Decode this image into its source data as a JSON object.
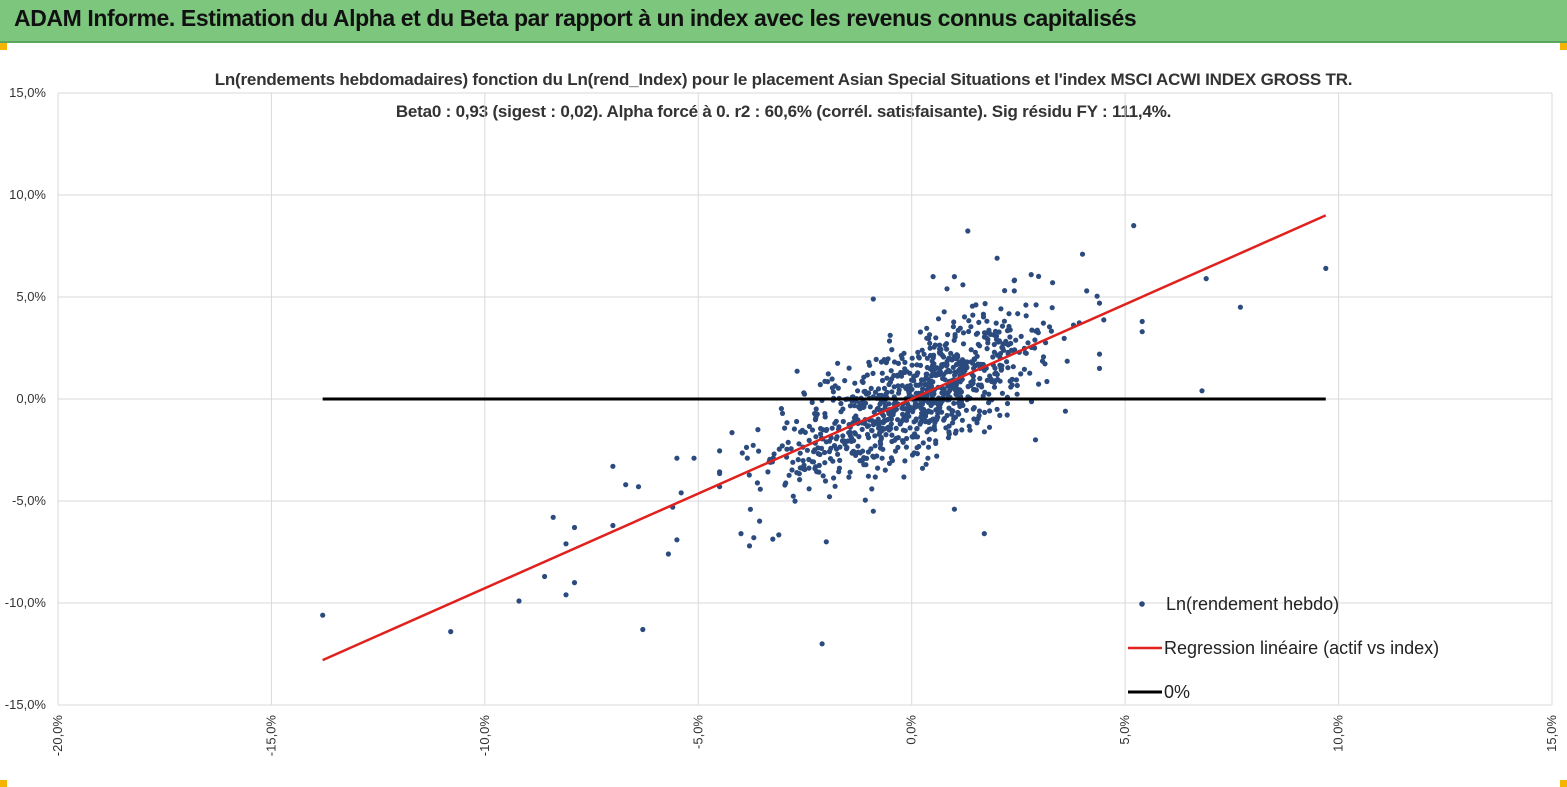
{
  "header": {
    "title": "ADAM Informe. Estimation du Alpha et du Beta par rapport à un index avec les revenus connus capitalisés"
  },
  "colors": {
    "banner": "#7dc67e",
    "points": "#2b4a7e",
    "regression": "#e0211d",
    "zero_line": "#000000",
    "grid": "#d9d9d9",
    "corner_markers": "#f5b400"
  },
  "chart_data": {
    "type": "scatter",
    "title": "Ln(rendements hebdomadaires) fonction du Ln(rend_Index) pour le placement Asian Special Situations  et l'index MSCI ACWI INDEX GROSS TR.",
    "subtitle": "Beta0 : 0,93  (sigest : 0,02).  Alpha forcé à 0. r2 : 60,6% (corrél. satisfaisante). Sig résidu FY : 111,4%.",
    "xlabel": "",
    "ylabel": "",
    "xlim": [
      -0.2,
      0.15
    ],
    "ylim": [
      -0.15,
      0.15
    ],
    "xticks": [
      "-20,0%",
      "-15,0%",
      "-10,0%",
      "-5,0%",
      "0,0%",
      "5,0%",
      "10,0%",
      "15,0%"
    ],
    "yticks": [
      "15,0%",
      "10,0%",
      "5,0%",
      "0,0%",
      "-5,0%",
      "-10,0%",
      "-15,0%"
    ],
    "grid": true,
    "legend_position": "bottom-right",
    "point_count": 1000,
    "beta": 0.93,
    "series": [
      {
        "name": "Ln(rendement hebdo)",
        "kind": "scatter",
        "points": [
          [
            -0.138,
            -0.106
          ],
          [
            -0.108,
            -0.114
          ],
          [
            -0.092,
            -0.099
          ],
          [
            -0.086,
            -0.087
          ],
          [
            -0.081,
            -0.096
          ],
          [
            -0.079,
            -0.09
          ],
          [
            -0.081,
            -0.071
          ],
          [
            -0.084,
            -0.058
          ],
          [
            -0.079,
            -0.063
          ],
          [
            -0.07,
            -0.062
          ],
          [
            -0.07,
            -0.033
          ],
          [
            -0.067,
            -0.042
          ],
          [
            -0.064,
            -0.043
          ],
          [
            -0.063,
            -0.113
          ],
          [
            -0.057,
            -0.076
          ],
          [
            -0.055,
            -0.069
          ],
          [
            -0.056,
            -0.053
          ],
          [
            -0.054,
            -0.046
          ],
          [
            -0.055,
            -0.029
          ],
          [
            -0.051,
            -0.029
          ],
          [
            -0.04,
            -0.066
          ],
          [
            -0.038,
            -0.072
          ],
          [
            -0.037,
            -0.068
          ],
          [
            -0.02,
            -0.07
          ],
          [
            -0.021,
            -0.12
          ],
          [
            -0.009,
            -0.055
          ],
          [
            -0.009,
            0.049
          ],
          [
            0.005,
            0.06
          ],
          [
            0.01,
            0.06
          ],
          [
            0.012,
            0.056
          ],
          [
            0.02,
            0.069
          ],
          [
            0.024,
            0.058
          ],
          [
            0.028,
            0.061
          ],
          [
            0.033,
            0.057
          ],
          [
            0.04,
            0.071
          ],
          [
            0.041,
            0.053
          ],
          [
            0.044,
            0.047
          ],
          [
            0.044,
            0.022
          ],
          [
            0.044,
            0.015
          ],
          [
            0.052,
            0.085
          ],
          [
            0.054,
            0.038
          ],
          [
            0.054,
            0.033
          ],
          [
            0.069,
            0.059
          ],
          [
            0.077,
            0.045
          ],
          [
            0.068,
            0.004
          ],
          [
            0.097,
            0.064
          ],
          [
            0.036,
            -0.006
          ],
          [
            0.029,
            -0.02
          ],
          [
            0.017,
            -0.066
          ],
          [
            0.01,
            -0.054
          ]
        ]
      },
      {
        "name": "Regression linéaire (actif vs index)",
        "kind": "line",
        "points": [
          [
            -0.138,
            -0.128
          ],
          [
            0.097,
            0.09
          ]
        ]
      },
      {
        "name": "0%",
        "kind": "line",
        "points": [
          [
            -0.138,
            0.0
          ],
          [
            0.097,
            0.0
          ]
        ]
      }
    ]
  }
}
